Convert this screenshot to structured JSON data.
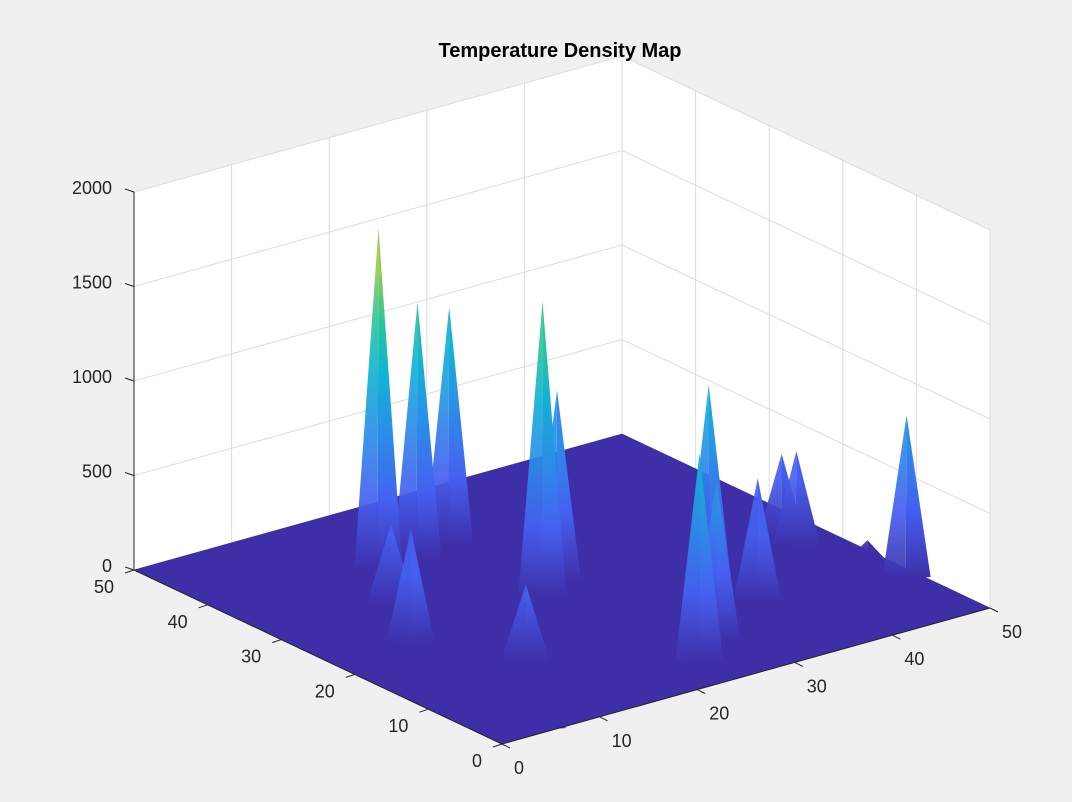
{
  "chart_data": {
    "type": "surface",
    "title": "Temperature Density Map",
    "xlabel": "",
    "ylabel": "",
    "zlabel": "",
    "xlim": [
      0,
      50
    ],
    "ylim": [
      0,
      50
    ],
    "zlim": [
      0,
      2000
    ],
    "x_ticks": [
      "0",
      "10",
      "20",
      "30",
      "40",
      "50"
    ],
    "y_ticks": [
      "0",
      "10",
      "20",
      "30",
      "40",
      "50"
    ],
    "z_ticks": [
      "0",
      "500",
      "1000",
      "1500",
      "2000"
    ],
    "grid": true,
    "colormap": "parula",
    "base_color": "#3e2ea8",
    "peaks": [
      {
        "x": 6,
        "y": 46,
        "z": 100
      },
      {
        "x": 2,
        "y": 30,
        "z": 100
      },
      {
        "x": 8,
        "y": 23,
        "z": 600
      },
      {
        "x": 12,
        "y": 31,
        "z": 420
      },
      {
        "x": 16,
        "y": 38,
        "z": 1800
      },
      {
        "x": 20,
        "y": 38,
        "z": 1350
      },
      {
        "x": 24,
        "y": 39,
        "z": 1250
      },
      {
        "x": 13,
        "y": 14,
        "z": 400
      },
      {
        "x": 23,
        "y": 25,
        "z": 1550
      },
      {
        "x": 26,
        "y": 27,
        "z": 1000
      },
      {
        "x": 18,
        "y": 9,
        "z": 350
      },
      {
        "x": 24,
        "y": 5,
        "z": 1100
      },
      {
        "x": 28,
        "y": 8,
        "z": 850
      },
      {
        "x": 34,
        "y": 28,
        "z": 130
      },
      {
        "x": 34,
        "y": 17,
        "z": 1100
      },
      {
        "x": 36,
        "y": 13,
        "z": 650
      },
      {
        "x": 46,
        "y": 23,
        "z": 450
      },
      {
        "x": 46,
        "y": 21,
        "z": 500
      },
      {
        "x": 48,
        "y": 14,
        "z": 130
      },
      {
        "x": 49,
        "y": 10,
        "z": 850
      },
      {
        "x": 5,
        "y": 1,
        "z": 30
      }
    ]
  }
}
